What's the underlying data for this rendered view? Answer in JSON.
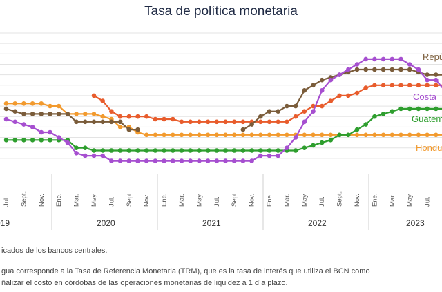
{
  "title": "Tasa de política monetaria",
  "footnotes": {
    "source": "icados de los bancos centrales.",
    "line1": "gua corresponde a la Tasa de Referencia Monetaria (TRM), que es la tasa de interés que utiliza el BCN como",
    "line2": "ñalizar el costo en córdobas de las operaciones monetarias de liquidez a 1 día plazo."
  },
  "chart_data": {
    "type": "line",
    "title": "Tasa de política monetaria",
    "x": [
      "2019-07",
      "2019-08",
      "2019-09",
      "2019-10",
      "2019-11",
      "2019-12",
      "2020-01",
      "2020-02",
      "2020-03",
      "2020-04",
      "2020-05",
      "2020-06",
      "2020-07",
      "2020-08",
      "2020-09",
      "2020-10",
      "2020-11",
      "2020-12",
      "2021-01",
      "2021-02",
      "2021-03",
      "2021-04",
      "2021-05",
      "2021-06",
      "2021-07",
      "2021-08",
      "2021-09",
      "2021-10",
      "2021-11",
      "2021-12",
      "2022-01",
      "2022-02",
      "2022-03",
      "2022-04",
      "2022-05",
      "2022-06",
      "2022-07",
      "2022-08",
      "2022-09",
      "2022-10",
      "2022-11",
      "2022-12",
      "2023-01",
      "2023-02",
      "2023-03",
      "2023-04",
      "2023-05",
      "2023-06",
      "2023-07",
      "2023-08",
      "2023-09"
    ],
    "month_tick_labels": [
      "Jul.",
      "Sept.",
      "Nov.",
      "Ene.",
      "Mar.",
      "May.",
      "Jul.",
      "Sept.",
      "Nov.",
      "Ene.",
      "Mar.",
      "May.",
      "Jul.",
      "Sept.",
      "Nov.",
      "Ene.",
      "Mar.",
      "May.",
      "Jul.",
      "Sept.",
      "Nov.",
      "Ene.",
      "Mar.",
      "May.",
      "Jul."
    ],
    "year_labels": [
      "019",
      "2020",
      "2021",
      "2022",
      "2023"
    ],
    "ylim": [
      0,
      13
    ],
    "series": [
      {
        "name": "Repú",
        "color": "#7a5c3a",
        "values": [
          5.75,
          5.5,
          5.25,
          5.25,
          5.25,
          5.25,
          5.25,
          5.25,
          4.5,
          4.5,
          4.5,
          4.5,
          4.5,
          4.5,
          3.75,
          3.75,
          null,
          null,
          null,
          null,
          null,
          null,
          null,
          null,
          null,
          null,
          null,
          3.75,
          4.25,
          5.0,
          5.5,
          5.5,
          6.0,
          6.0,
          7.5,
          8.0,
          8.5,
          8.75,
          9.0,
          9.25,
          9.5,
          9.5,
          9.5,
          9.5,
          9.5,
          9.5,
          9.5,
          9.25,
          9.0,
          9.0,
          9.0
        ]
      },
      {
        "name": "",
        "color": "#e85c2c",
        "values": [
          null,
          null,
          null,
          null,
          null,
          null,
          null,
          null,
          null,
          null,
          7.0,
          6.5,
          5.5,
          5.0,
          5.0,
          5.0,
          5.0,
          4.75,
          4.75,
          4.75,
          4.5,
          4.5,
          4.5,
          4.5,
          4.5,
          4.5,
          4.5,
          4.5,
          4.5,
          4.5,
          4.5,
          4.5,
          4.5,
          5.0,
          5.5,
          6.0,
          6.0,
          6.5,
          7.0,
          7.0,
          7.25,
          7.75,
          8.0,
          8.0,
          8.0,
          8.0,
          8.0,
          8.0,
          8.0,
          8.0,
          8.0
        ]
      },
      {
        "name": "Costa",
        "color": "#a64fd0",
        "values": [
          4.75,
          4.5,
          4.25,
          4.0,
          3.5,
          3.5,
          3.0,
          2.5,
          1.5,
          1.25,
          1.25,
          1.25,
          0.75,
          0.75,
          0.75,
          0.75,
          0.75,
          0.75,
          0.75,
          0.75,
          0.75,
          0.75,
          0.75,
          0.75,
          0.75,
          0.75,
          0.75,
          0.75,
          0.75,
          1.25,
          1.25,
          1.25,
          2.0,
          3.0,
          4.5,
          5.5,
          7.5,
          8.5,
          9.0,
          9.5,
          10.0,
          10.5,
          10.5,
          10.5,
          10.5,
          10.5,
          10.0,
          9.5,
          8.5,
          8.5,
          7.5
        ]
      },
      {
        "name": "Guatem",
        "color": "#2e9e2e",
        "values": [
          2.75,
          2.75,
          2.75,
          2.75,
          2.75,
          2.75,
          2.75,
          2.75,
          2.0,
          2.0,
          1.75,
          1.75,
          1.75,
          1.75,
          1.75,
          1.75,
          1.75,
          1.75,
          1.75,
          1.75,
          1.75,
          1.75,
          1.75,
          1.75,
          1.75,
          1.75,
          1.75,
          1.75,
          1.75,
          1.75,
          1.75,
          1.75,
          1.75,
          1.75,
          2.0,
          2.25,
          2.5,
          2.75,
          3.25,
          3.25,
          3.75,
          4.25,
          5.0,
          5.25,
          5.5,
          5.75,
          5.75,
          5.75,
          5.75,
          5.75,
          5.75
        ]
      },
      {
        "name": "Hondu",
        "color": "#f29a2e",
        "values": [
          6.25,
          6.25,
          6.25,
          6.25,
          6.25,
          6.0,
          6.0,
          5.25,
          5.25,
          5.25,
          5.25,
          5.0,
          4.75,
          4.0,
          4.0,
          3.5,
          3.25,
          3.25,
          3.25,
          3.25,
          3.25,
          3.25,
          3.25,
          3.25,
          3.25,
          3.25,
          3.25,
          3.25,
          3.25,
          3.25,
          3.25,
          3.25,
          3.25,
          3.25,
          3.25,
          3.25,
          3.25,
          3.25,
          3.25,
          3.25,
          3.25,
          3.25,
          3.25,
          3.25,
          3.25,
          3.25,
          3.25,
          3.25,
          3.25,
          3.25,
          3.25
        ]
      }
    ],
    "grid": true
  }
}
